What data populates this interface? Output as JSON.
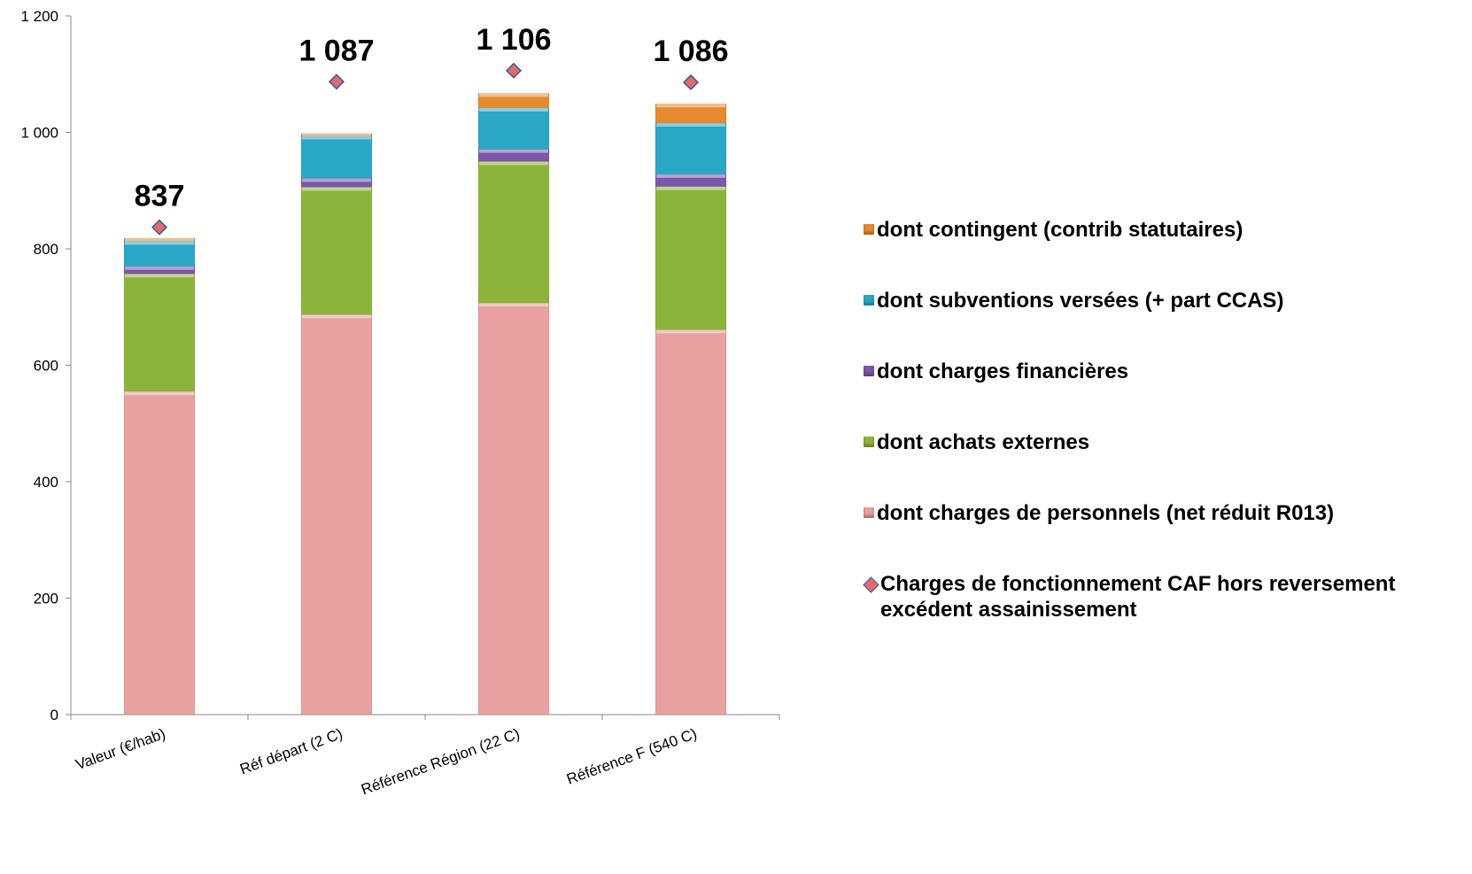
{
  "chart_data": {
    "type": "bar",
    "stacked": true,
    "categories": [
      "Valeur (€/hab)",
      "Réf départ (2 C)",
      "Référence Région (22 C)",
      "Référence F (540 C)"
    ],
    "ylim": [
      0,
      1200
    ],
    "yticks": [
      0,
      200,
      400,
      600,
      800,
      1000,
      1200
    ],
    "ytick_labels": [
      "0",
      "200",
      "400",
      "600",
      "800",
      "1 000",
      "1 200"
    ],
    "series": [
      {
        "name": "dont charges de personnels (net réduit R013)",
        "color": "#e8a0a0",
        "values": [
          555,
          687,
          707,
          661
        ]
      },
      {
        "name": "dont achats externes",
        "color": "#8db43a",
        "values": [
          202,
          219,
          243,
          246
        ]
      },
      {
        "name": "dont charges financières",
        "color": "#7a57a8",
        "values": [
          13,
          15,
          21,
          21
        ]
      },
      {
        "name": "dont subventions versées (+ part CCAS)",
        "color": "#2aa7c7",
        "values": [
          43,
          73,
          71,
          88
        ]
      },
      {
        "name": "dont contingent (contrib statutaires)",
        "color": "#e7892e",
        "values": [
          5,
          4,
          25,
          33
        ]
      }
    ],
    "line_series": {
      "name": "Charges de fonctionnement CAF hors reversement excédent assainissement",
      "marker": "diamond",
      "color": "#e06a6e",
      "edge_color": "#3d5a9a",
      "values": [
        837,
        1087,
        1106,
        1086
      ],
      "labels": [
        "837",
        "1 087",
        "1 106",
        "1 086"
      ]
    },
    "legend_position": "right",
    "grid": false
  }
}
